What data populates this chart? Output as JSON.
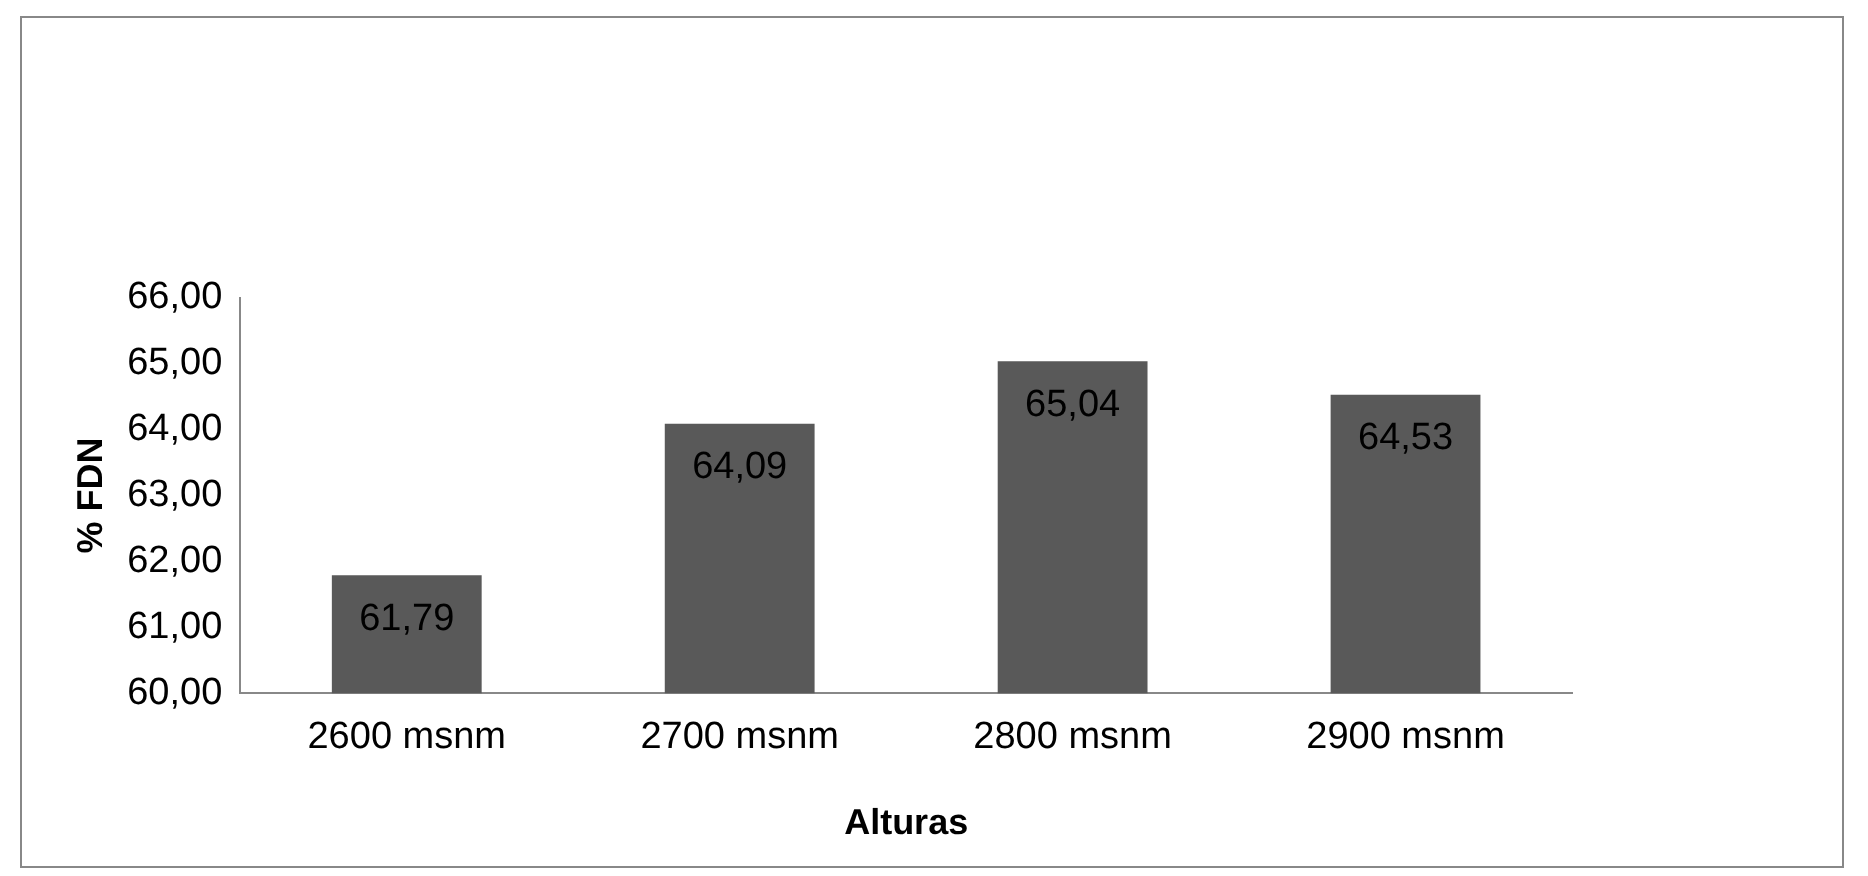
{
  "chart_data": {
    "type": "bar",
    "xlabel": "Alturas",
    "ylabel": "% FDN",
    "categories": [
      "2600 msnm",
      "2700 msnm",
      "2800 msnm",
      "2900 msnm"
    ],
    "values": [
      61.79,
      64.09,
      65.04,
      64.53
    ],
    "value_labels": [
      "61,79",
      "64,09",
      "65,04",
      "64,53"
    ],
    "color": "#595959",
    "ylim": [
      60,
      66
    ],
    "yticks": [
      {
        "value": 60,
        "label": "60,00"
      },
      {
        "value": 61,
        "label": "61,00"
      },
      {
        "value": 62,
        "label": "62,00"
      },
      {
        "value": 63,
        "label": "63,00"
      },
      {
        "value": 64,
        "label": "64,00"
      },
      {
        "value": 65,
        "label": "65,00"
      },
      {
        "value": 66,
        "label": "66,00"
      }
    ],
    "grid": false,
    "legend": false
  }
}
